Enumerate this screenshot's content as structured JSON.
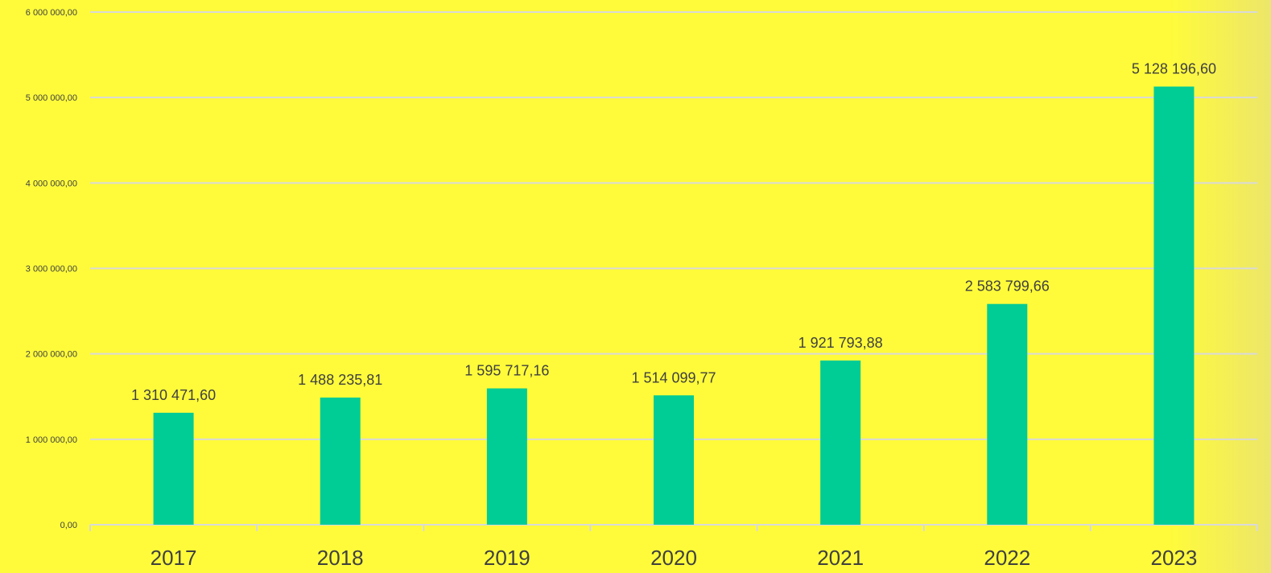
{
  "colors": {
    "background": "#fffb3a",
    "bar": "#00cc96",
    "gridline": "#d9d9d9",
    "text": "#404040"
  },
  "chart_data": {
    "type": "bar",
    "categories": [
      "2017",
      "2018",
      "2019",
      "2020",
      "2021",
      "2022",
      "2023"
    ],
    "values": [
      1310471.6,
      1488235.81,
      1595717.16,
      1514099.77,
      1921793.88,
      2583799.66,
      5128196.6
    ],
    "data_labels": [
      "1 310 471,60",
      "1 488 235,81",
      "1 595 717,16",
      "1 514 099,77",
      "1 921 793,88",
      "2 583 799,66",
      "5 128 196,60"
    ],
    "yticks": [
      0,
      1000000,
      2000000,
      3000000,
      4000000,
      5000000,
      6000000
    ],
    "ytick_labels": [
      "0,00",
      "1 000 000,00",
      "2 000 000,00",
      "3 000 000,00",
      "4 000 000,00",
      "5 000 000,00",
      "6 000 000,00"
    ],
    "ylim": [
      0,
      6000000
    ],
    "grid": true,
    "legend": "none"
  }
}
